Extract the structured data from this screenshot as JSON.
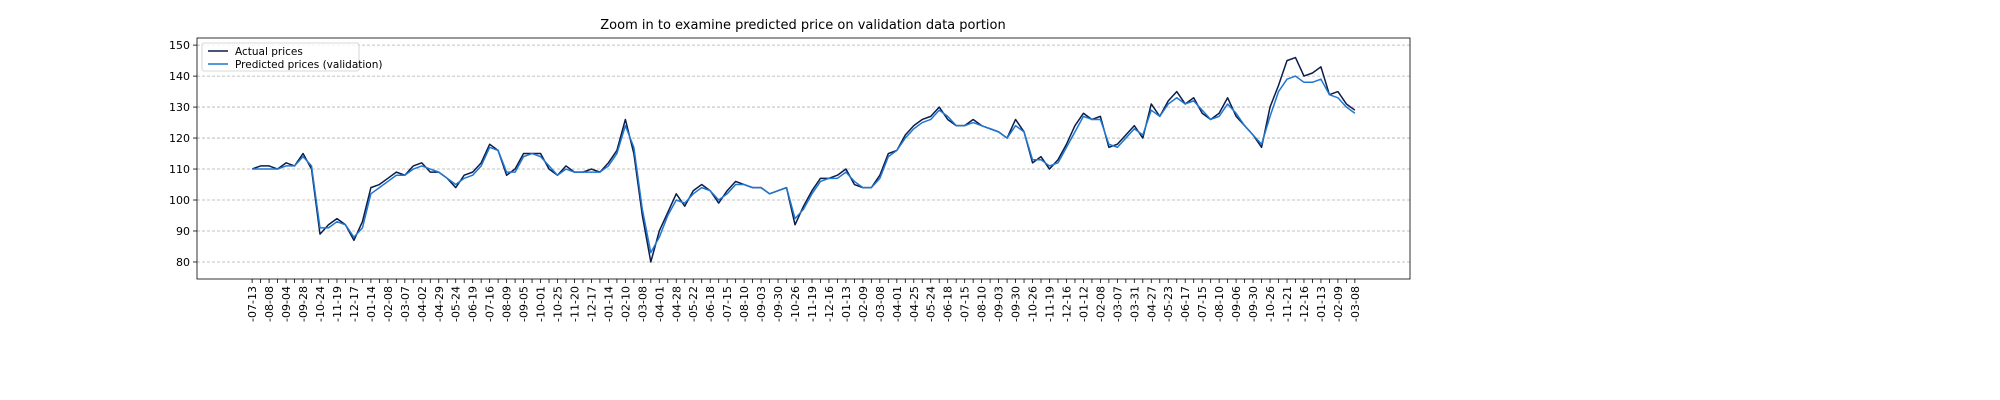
{
  "chart_data": {
    "type": "line",
    "title": "Zoom in to examine predicted price on validation data portion",
    "categories": [
      "-07-13",
      null,
      "-08-08",
      null,
      "-09-04",
      null,
      "-09-28",
      null,
      "-10-24",
      null,
      "-11-19",
      null,
      "-12-17",
      null,
      "-01-14",
      null,
      "-02-08",
      null,
      "-03-07",
      null,
      "-04-02",
      null,
      "-04-29",
      null,
      "-05-24",
      null,
      "-06-19",
      null,
      "-07-16",
      null,
      "-08-09",
      null,
      "-09-05",
      null,
      "-10-01",
      null,
      "-10-25",
      null,
      "-11-20",
      null,
      "-12-17",
      null,
      "-01-14",
      null,
      "-02-10",
      null,
      "-03-08",
      null,
      "-04-01",
      null,
      "-04-28",
      null,
      "-05-22",
      null,
      "-06-18",
      null,
      "-07-15",
      null,
      "-08-10",
      null,
      "-09-03",
      null,
      "-09-30",
      null,
      "-10-26",
      null,
      "-11-19",
      null,
      "-12-16",
      null,
      "-01-13",
      null,
      "-02-09",
      null,
      "-03-08",
      null,
      "-04-01",
      null,
      "-04-25",
      null,
      "-05-24",
      null,
      "-06-18",
      null,
      "-07-15",
      null,
      "-08-10",
      null,
      "-09-03",
      null,
      "-09-30",
      null,
      "-10-26",
      null,
      "-11-19",
      null,
      "-12-16",
      null,
      "-01-12",
      null,
      "-02-08",
      null,
      "-03-07",
      null,
      "-03-31",
      null,
      "-04-27",
      null,
      "-05-23",
      null,
      "-06-17",
      null,
      "-07-15",
      null,
      "-08-10",
      null,
      "-09-06",
      null,
      "-09-30",
      null,
      "-10-26",
      null,
      "-11-21",
      null,
      "-12-16",
      null,
      "-01-13",
      null,
      "-02-09",
      null,
      "-03-08"
    ],
    "series": [
      {
        "name": "Actual prices",
        "color": "#0c1d4a",
        "values": [
          110,
          111,
          111,
          110,
          112,
          111,
          115,
          110,
          89,
          92,
          94,
          92,
          87,
          93,
          104,
          105,
          107,
          109,
          108,
          111,
          112,
          109,
          109,
          107,
          104,
          108,
          109,
          112,
          118,
          116,
          108,
          110,
          115,
          115,
          115,
          110,
          108,
          111,
          109,
          109,
          110,
          109,
          112,
          116,
          126,
          115,
          95,
          80,
          90,
          96,
          102,
          98,
          103,
          105,
          103,
          99,
          103,
          106,
          105,
          104,
          104,
          102,
          103,
          104,
          92,
          98,
          103,
          107,
          107,
          108,
          110,
          105,
          104,
          104,
          108,
          115,
          116,
          121,
          124,
          126,
          127,
          130,
          126,
          124,
          124,
          126,
          124,
          123,
          122,
          120,
          126,
          122,
          112,
          114,
          110,
          113,
          118,
          124,
          128,
          126,
          127,
          117,
          118,
          121,
          124,
          120,
          131,
          127,
          132,
          135,
          131,
          133,
          128,
          126,
          128,
          133,
          127,
          124,
          121,
          117,
          130,
          137,
          145,
          146,
          140,
          141,
          143,
          134,
          135,
          131,
          129
        ]
      },
      {
        "name": "Predicted prices (validation)",
        "color": "#1f77d2",
        "values": [
          110,
          110,
          110,
          110,
          111,
          111,
          114,
          111,
          91,
          91,
          93,
          92,
          88,
          91,
          102,
          104,
          106,
          108,
          108,
          110,
          111,
          110,
          109,
          107,
          105,
          107,
          108,
          111,
          117,
          116,
          109,
          109,
          114,
          115,
          114,
          111,
          108,
          110,
          109,
          109,
          109,
          109,
          111,
          115,
          124,
          117,
          97,
          83,
          88,
          95,
          100,
          99,
          102,
          104,
          103,
          100,
          102,
          105,
          105,
          104,
          104,
          102,
          103,
          104,
          94,
          97,
          102,
          106,
          107,
          107,
          109,
          106,
          104,
          104,
          107,
          114,
          116,
          120,
          123,
          125,
          126,
          129,
          127,
          124,
          124,
          125,
          124,
          123,
          122,
          120,
          124,
          122,
          113,
          113,
          111,
          112,
          117,
          122,
          127,
          126,
          126,
          118,
          117,
          120,
          123,
          121,
          129,
          127,
          131,
          133,
          131,
          132,
          129,
          126,
          127,
          131,
          128,
          124,
          121,
          118,
          127,
          135,
          139,
          140,
          138,
          138,
          139,
          134,
          133,
          130,
          128
        ]
      }
    ],
    "ylim": [
      74.5,
      152.3
    ],
    "yticks": [
      80,
      90,
      100,
      110,
      120,
      130,
      140,
      150
    ],
    "grid": true,
    "legend": "upper left"
  }
}
